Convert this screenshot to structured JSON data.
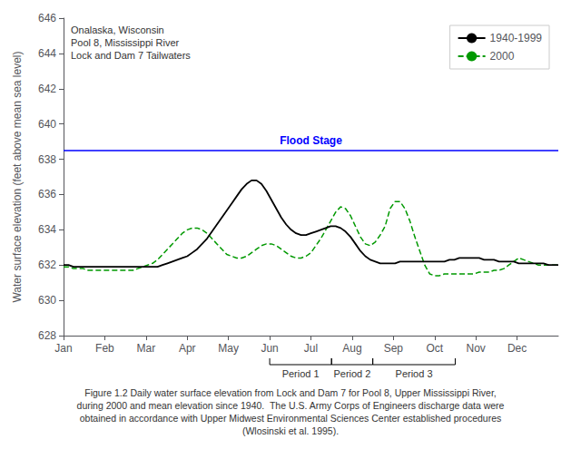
{
  "chart_data": {
    "type": "line",
    "annotation": "Onalaska, Wisconsin\nPool 8, Mississippi River\nLock and Dam 7 Tailwaters",
    "ylabel": "Water surface elevation (feet above mean sea level)",
    "caption": "Figure 1.2 Daily water surface elevation from Lock and Dam 7 for Pool 8, Upper Mississippi River,\nduring 2000 and mean elevation since 1940.  The U.S. Army Corps of Engineers discharge data were\nobtained in accordance with Upper Midwest Environmental Sciences Center established procedures\n(Wlosinski et al. 1995).",
    "hline": {
      "y": 638.5,
      "label": "Flood Stage",
      "color": "#0000FF"
    },
    "periods": [
      {
        "label": "Period 1",
        "start": 5.0,
        "end": 6.5
      },
      {
        "label": "Period 2",
        "start": 6.5,
        "end": 7.5
      },
      {
        "label": "Period 3",
        "start": 7.5,
        "end": 9.5
      }
    ],
    "xlim": [
      0,
      12
    ],
    "xticks": [
      {
        "value": 0,
        "label": "Jan"
      },
      {
        "value": 1,
        "label": "Feb"
      },
      {
        "value": 2,
        "label": "Mar"
      },
      {
        "value": 3,
        "label": "Apr"
      },
      {
        "value": 4,
        "label": "May"
      },
      {
        "value": 5,
        "label": "Jun"
      },
      {
        "value": 6,
        "label": "Jul"
      },
      {
        "value": 7,
        "label": "Aug"
      },
      {
        "value": 8,
        "label": "Sep"
      },
      {
        "value": 9,
        "label": "Oct"
      },
      {
        "value": 10,
        "label": "Nov"
      },
      {
        "value": 11,
        "label": "Dec"
      }
    ],
    "ylim": [
      628,
      646
    ],
    "yticks": [
      628,
      630,
      632,
      634,
      636,
      638,
      640,
      642,
      644,
      646
    ],
    "grid": false,
    "legend": "upper right",
    "x": [
      0,
      0.12,
      0.24,
      0.36,
      0.48,
      0.6,
      0.72,
      0.84,
      0.96,
      1.08,
      1.2,
      1.32,
      1.44,
      1.56,
      1.68,
      1.8,
      1.92,
      2.04,
      2.16,
      2.28,
      2.4,
      2.52,
      2.64,
      2.76,
      2.88,
      3,
      3.12,
      3.24,
      3.36,
      3.48,
      3.6,
      3.72,
      3.84,
      3.96,
      4.08,
      4.2,
      4.32,
      4.44,
      4.56,
      4.68,
      4.8,
      4.92,
      5.04,
      5.16,
      5.28,
      5.4,
      5.52,
      5.64,
      5.76,
      5.88,
      6,
      6.12,
      6.24,
      6.36,
      6.48,
      6.6,
      6.72,
      6.84,
      6.96,
      7.08,
      7.2,
      7.32,
      7.44,
      7.56,
      7.68,
      7.8,
      7.92,
      8.04,
      8.16,
      8.28,
      8.4,
      8.52,
      8.64,
      8.76,
      8.88,
      9,
      9.12,
      9.24,
      9.36,
      9.48,
      9.6,
      9.72,
      9.84,
      9.96,
      10.08,
      10.2,
      10.32,
      10.44,
      10.56,
      10.68,
      10.8,
      10.92,
      11.04,
      11.16,
      11.28,
      11.4,
      11.52,
      11.64,
      11.76,
      11.88,
      12
    ],
    "series": [
      {
        "name": "1940-1999",
        "color": "#000000",
        "line_style": "solid",
        "values": [
          632.0,
          632.0,
          631.9,
          631.9,
          631.9,
          631.9,
          631.9,
          631.9,
          631.9,
          631.9,
          631.9,
          631.9,
          631.9,
          631.9,
          631.9,
          631.9,
          631.9,
          631.9,
          631.9,
          631.9,
          632.0,
          632.1,
          632.2,
          632.3,
          632.4,
          632.5,
          632.7,
          632.9,
          633.2,
          633.5,
          633.9,
          634.3,
          634.7,
          635.1,
          635.5,
          635.9,
          636.3,
          636.6,
          636.8,
          636.8,
          636.6,
          636.2,
          635.7,
          635.2,
          634.7,
          634.3,
          634.0,
          633.8,
          633.7,
          633.7,
          633.8,
          633.9,
          634.0,
          634.1,
          634.2,
          634.2,
          634.1,
          633.9,
          633.6,
          633.2,
          632.8,
          632.5,
          632.3,
          632.2,
          632.1,
          632.1,
          632.1,
          632.1,
          632.2,
          632.2,
          632.2,
          632.2,
          632.2,
          632.2,
          632.2,
          632.2,
          632.2,
          632.2,
          632.3,
          632.3,
          632.4,
          632.4,
          632.4,
          632.4,
          632.4,
          632.3,
          632.3,
          632.3,
          632.2,
          632.2,
          632.2,
          632.2,
          632.1,
          632.1,
          632.1,
          632.1,
          632.1,
          632.1,
          632.0,
          632.0,
          632.0
        ]
      },
      {
        "name": "2000",
        "color": "#009900",
        "line_style": "dashed",
        "values": [
          631.9,
          631.9,
          631.8,
          631.8,
          631.8,
          631.7,
          631.7,
          631.7,
          631.7,
          631.7,
          631.7,
          631.7,
          631.7,
          631.7,
          631.7,
          631.8,
          631.9,
          632.0,
          632.1,
          632.3,
          632.6,
          632.9,
          633.2,
          633.5,
          633.8,
          634.0,
          634.1,
          634.1,
          634.0,
          633.8,
          633.5,
          633.2,
          632.9,
          632.6,
          632.5,
          632.4,
          632.4,
          632.5,
          632.7,
          632.9,
          633.1,
          633.2,
          633.2,
          633.1,
          632.9,
          632.7,
          632.5,
          632.4,
          632.4,
          632.5,
          632.7,
          633.1,
          633.5,
          634.0,
          634.5,
          635.0,
          635.3,
          635.2,
          634.8,
          634.2,
          633.6,
          633.2,
          633.1,
          633.3,
          633.7,
          634.2,
          635.2,
          635.6,
          635.6,
          635.2,
          634.5,
          633.6,
          632.8,
          632.0,
          631.5,
          631.4,
          631.4,
          631.5,
          631.5,
          631.5,
          631.5,
          631.5,
          631.5,
          631.5,
          631.6,
          631.6,
          631.6,
          631.7,
          631.7,
          631.8,
          632.0,
          632.2,
          632.4,
          632.3,
          632.2,
          632.1,
          632.0,
          632.0,
          632.0,
          632.0,
          632.0
        ]
      }
    ]
  }
}
